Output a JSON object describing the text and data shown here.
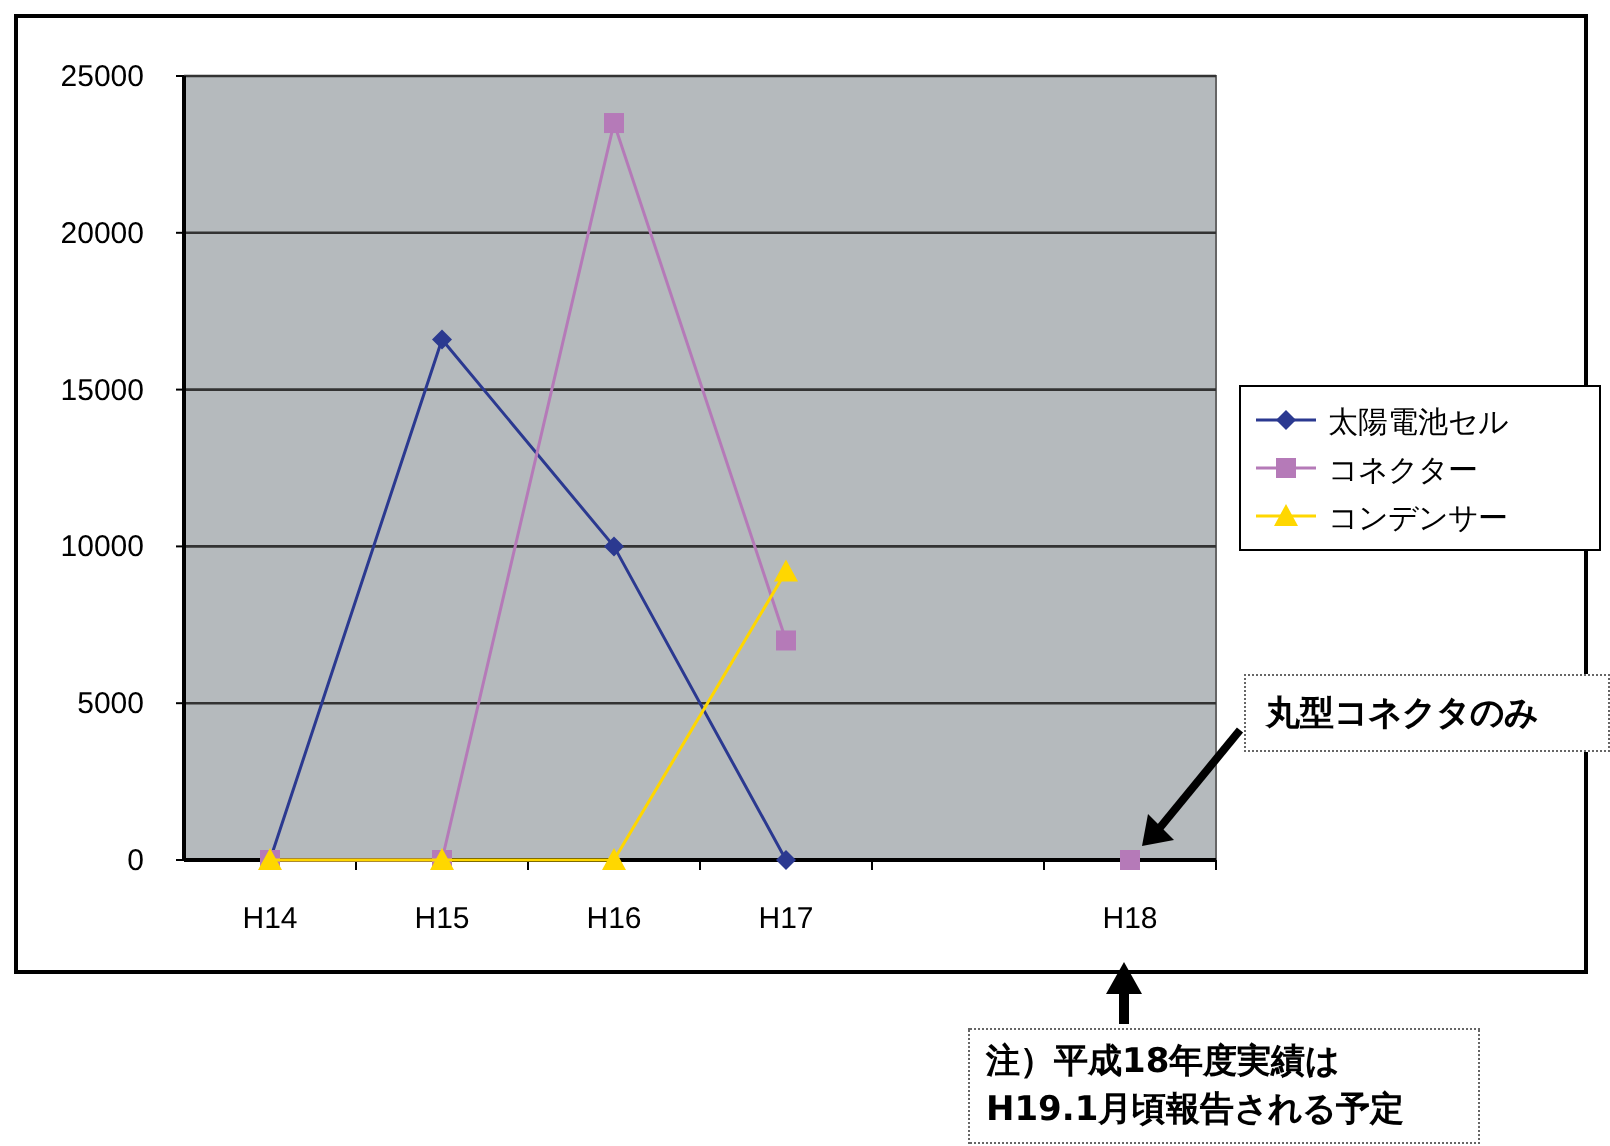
{
  "chart_data": {
    "type": "line",
    "categories": [
      "H14",
      "H15",
      "H16",
      "H17",
      null,
      "H18"
    ],
    "series": [
      {
        "name": "太陽電池セル",
        "color": "#2b3990",
        "marker": "diamond",
        "values": [
          0,
          16600,
          10000,
          0,
          null,
          null
        ]
      },
      {
        "name": "コネクター",
        "color": "#b57ab8",
        "marker": "square",
        "values": [
          0,
          0,
          23500,
          7000,
          null,
          0
        ]
      },
      {
        "name": "コンデンサー",
        "color": "#ffd700",
        "marker": "triangle",
        "values": [
          0,
          0,
          0,
          9200,
          null,
          null
        ]
      }
    ],
    "ylim": [
      0,
      25000
    ],
    "yticks": [
      0,
      5000,
      10000,
      15000,
      20000,
      25000
    ],
    "grid": "y",
    "legend": "right",
    "annotations": [
      "丸型コネクタのみ",
      "注）平成18年度実績はH19.1月頃報告される予定"
    ]
  }
}
